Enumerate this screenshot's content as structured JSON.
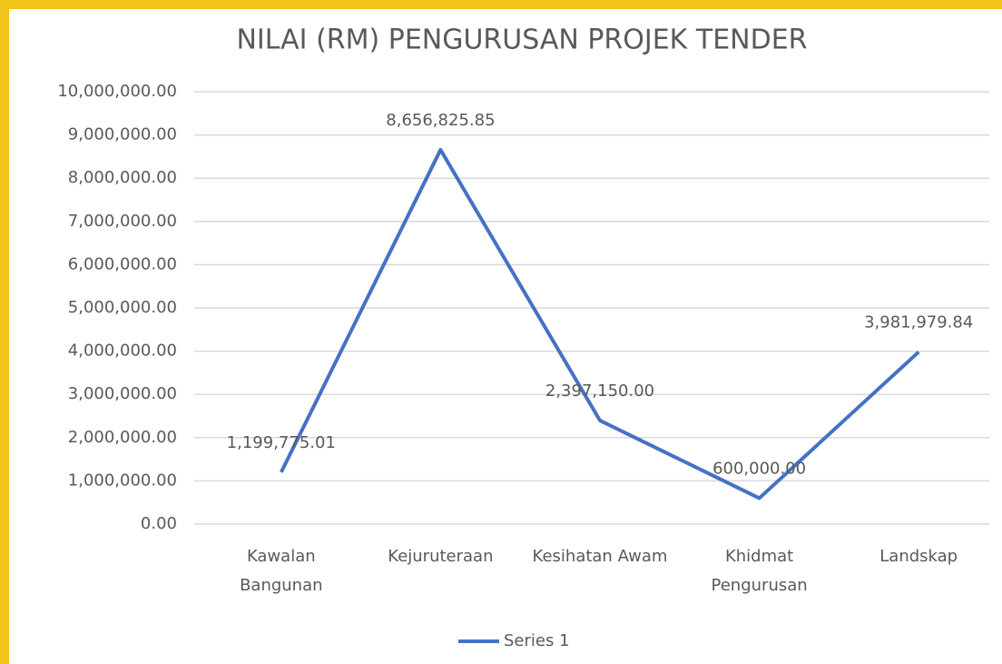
{
  "chart_data": {
    "type": "line",
    "title": "NILAI (RM) PENGURUSAN PROJEK TENDER",
    "categories": [
      "Kawalan Bangunan",
      "Kejuruteraan",
      "Kesihatan Awam",
      "Khidmat Pengurusan",
      "Landskap"
    ],
    "series": [
      {
        "name": "Series 1",
        "color": "#4472c4",
        "values": [
          1199775.01,
          8656825.85,
          2397150,
          600000,
          3981979.84
        ],
        "value_labels": [
          "1,199,775.01",
          "8,656,825.85",
          "2,397,150.00",
          "600,000.00",
          "3,981,979.84"
        ]
      }
    ],
    "ylim": [
      0,
      10000000
    ],
    "yticks": [
      {
        "value": 0,
        "label": "0.00"
      },
      {
        "value": 1000000,
        "label": "1,000,000.00"
      },
      {
        "value": 2000000,
        "label": "2,000,000.00"
      },
      {
        "value": 3000000,
        "label": "3,000,000.00"
      },
      {
        "value": 4000000,
        "label": "4,000,000.00"
      },
      {
        "value": 5000000,
        "label": "5,000,000.00"
      },
      {
        "value": 6000000,
        "label": "6,000,000.00"
      },
      {
        "value": 7000000,
        "label": "7,000,000.00"
      },
      {
        "value": 8000000,
        "label": "8,000,000.00"
      },
      {
        "value": 9000000,
        "label": "9,000,000.00"
      },
      {
        "value": 10000000,
        "label": "10,000,000.00"
      }
    ],
    "grid": true,
    "legend": "bottom"
  }
}
